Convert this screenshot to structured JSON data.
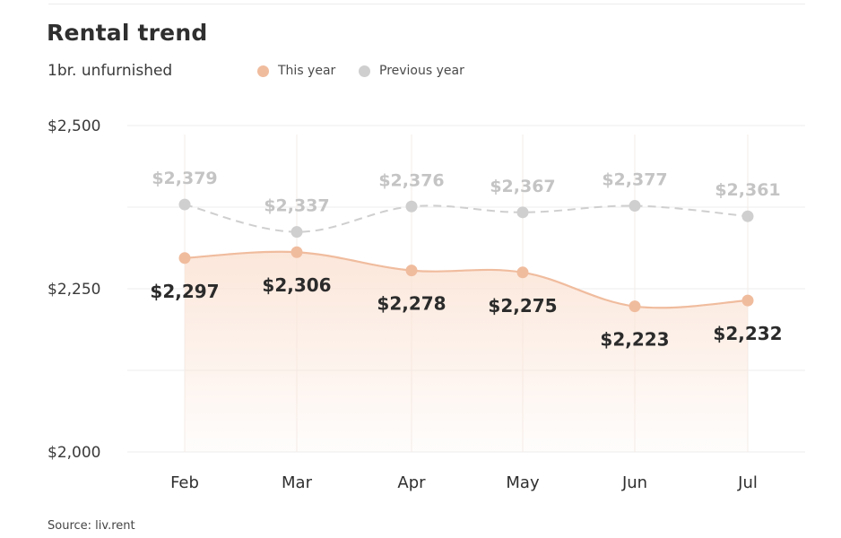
{
  "title": "Rental trend",
  "subtitle": "1br. unfurnished",
  "legend": {
    "this_year": "This year",
    "previous_year": "Previous year"
  },
  "source": "Source: liv.rent",
  "colors": {
    "this_year": "#f0bc9e",
    "previous_year": "#cfcfcf",
    "this_year_label": "#2b2b2b",
    "previous_year_label": "#c4c4c4",
    "area_fill": "#fbe4d6"
  },
  "chart_data": {
    "type": "line",
    "categories": [
      "Feb",
      "Mar",
      "Apr",
      "May",
      "Jun",
      "Jul"
    ],
    "series": [
      {
        "name": "This year",
        "values": [
          2297,
          2306,
          2278,
          2275,
          2223,
          2232
        ],
        "labels": [
          "$2,297",
          "$2,306",
          "$2,278",
          "$2,275",
          "$2,223",
          "$2,232"
        ]
      },
      {
        "name": "Previous year",
        "values": [
          2379,
          2337,
          2376,
          2367,
          2377,
          2361
        ],
        "labels": [
          "$2,379",
          "$2,337",
          "$2,376",
          "$2,367",
          "$2,377",
          "$2,361"
        ]
      }
    ],
    "ylim": [
      2000,
      2500
    ],
    "yticks": [
      2000,
      2250,
      2500
    ],
    "ytick_labels": [
      "$2,000",
      "$2,250",
      "$2,500"
    ],
    "grid": true,
    "legend_position": "top"
  }
}
